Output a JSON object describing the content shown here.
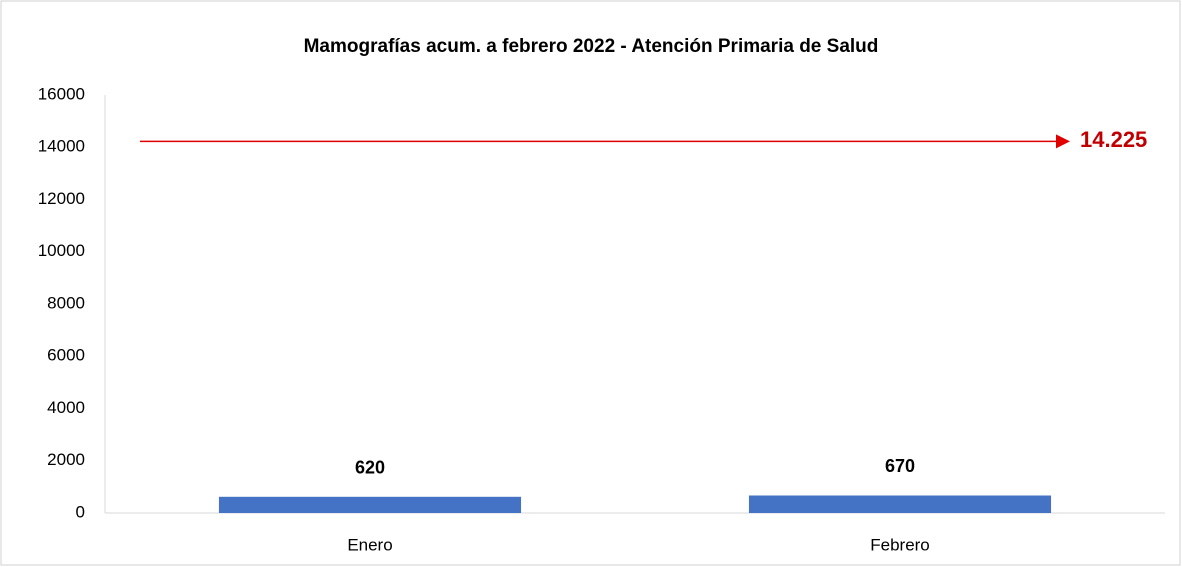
{
  "chart_data": {
    "type": "bar",
    "title": "Mamografías acum. a febrero 2022 - Atención Primaria de Salud",
    "categories": [
      "Enero",
      "Febrero"
    ],
    "values": [
      620,
      670
    ],
    "color": "#4472c4",
    "ylim": [
      0,
      16000
    ],
    "yticks": [
      0,
      2000,
      4000,
      6000,
      8000,
      10000,
      12000,
      14000,
      16000
    ],
    "grid": false,
    "target": {
      "value": 14225,
      "label": "14.225",
      "color": "#e00000"
    }
  }
}
